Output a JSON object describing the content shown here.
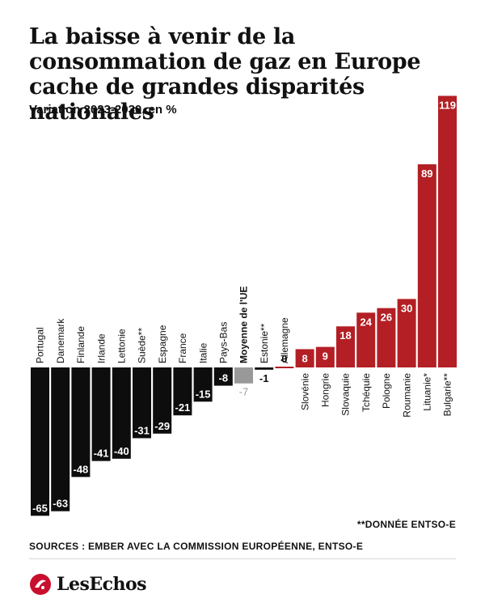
{
  "title": "La baisse à venir de la consommation de gaz en Europe cache de grandes disparités nationales",
  "subtitle": "Variation 2023-2030, en %",
  "note": "**DONNÉE ENTSO-E",
  "sources": "SOURCES : EMBER AVEC LA COMMISSION EUROPÉENNE, ENTSO-E",
  "logo": {
    "text": "LesEchos",
    "icon": "les-echos-logo-icon"
  },
  "colors": {
    "negative": "#0d0d0d",
    "positive": "#b31f24",
    "average": "#999999",
    "text": "#111111"
  },
  "chart_data": {
    "type": "bar",
    "title": "La baisse à venir de la consommation de gaz en Europe cache de grandes disparités nationales",
    "subtitle": "Variation 2023-2030, en %",
    "categories": [
      "Portugal",
      "Danemark",
      "Finlande",
      "Irlande",
      "Lettonie",
      "Suède**",
      "Espagne",
      "France",
      "Italie",
      "Pays-Bas",
      "Moyenne de l'UE",
      "Estonie**",
      "Allemagne",
      "Slovénie",
      "Hongrie",
      "Slovaquie",
      "Tchéquie",
      "Pologne",
      "Roumanie",
      "Lituanie*",
      "Bulgarie**"
    ],
    "values": [
      -65,
      -63,
      -48,
      -41,
      -40,
      -31,
      -29,
      -21,
      -15,
      -8,
      -7,
      -1,
      0,
      8,
      9,
      18,
      24,
      26,
      30,
      89,
      119
    ],
    "highlight": "Moyenne de l'UE",
    "ylim": [
      -65,
      119
    ],
    "grid": false
  }
}
